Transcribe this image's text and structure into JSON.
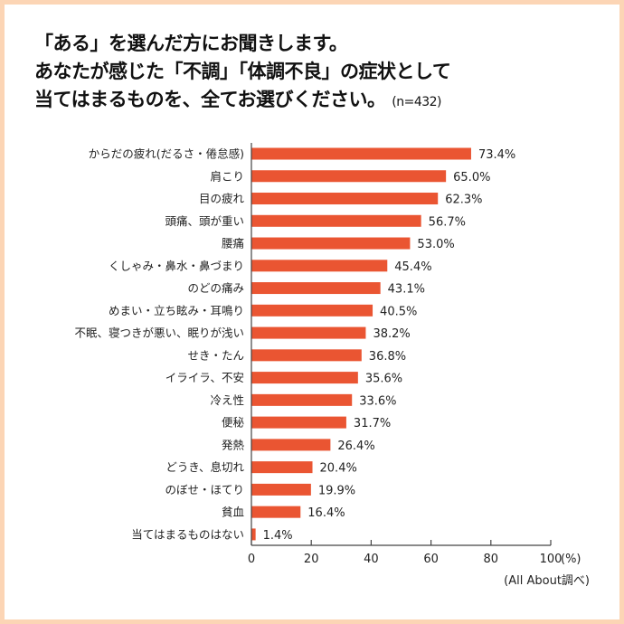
{
  "title": {
    "line1": "「ある」を選んだ方にお聞きします。",
    "line2": "あなたが感じた「不調」「体調不良」の症状として",
    "line3": "当てはまるものを、全てお選びください。",
    "sample": "(n=432)"
  },
  "source": "(All About調べ)",
  "colors": {
    "bar": "#ea5532",
    "frame": "#fcd5b5"
  },
  "chart_data": {
    "type": "bar",
    "orientation": "horizontal",
    "categories": [
      "からだの疲れ(だるさ・倦怠感)",
      "肩こり",
      "目の疲れ",
      "頭痛、頭が重い",
      "腰痛",
      "くしゃみ・鼻水・鼻づまり",
      "のどの痛み",
      "めまい・立ち眩み・耳鳴り",
      "不眠、寝つきが悪い、眠りが浅い",
      "せき・たん",
      "イライラ、不安",
      "冷え性",
      "便秘",
      "発熱",
      "どうき、息切れ",
      "のぼせ・ほてり",
      "貧血",
      "当てはまるものはない"
    ],
    "values": [
      73.4,
      65.0,
      62.3,
      56.7,
      53.0,
      45.4,
      43.1,
      40.5,
      38.2,
      36.8,
      35.6,
      33.6,
      31.7,
      26.4,
      20.4,
      19.9,
      16.4,
      1.4
    ],
    "data_labels": [
      "73.4%",
      "65.0%",
      "62.3%",
      "56.7%",
      "53.0%",
      "45.4%",
      "43.1%",
      "40.5%",
      "38.2%",
      "36.8%",
      "35.6%",
      "33.6%",
      "31.7%",
      "26.4%",
      "20.4%",
      "19.9%",
      "16.4%",
      "1.4%"
    ],
    "xlim": [
      0,
      100
    ],
    "xticks": [
      "0",
      "20",
      "40",
      "60",
      "80",
      "100"
    ],
    "xunit": "(%)",
    "grid": false
  }
}
